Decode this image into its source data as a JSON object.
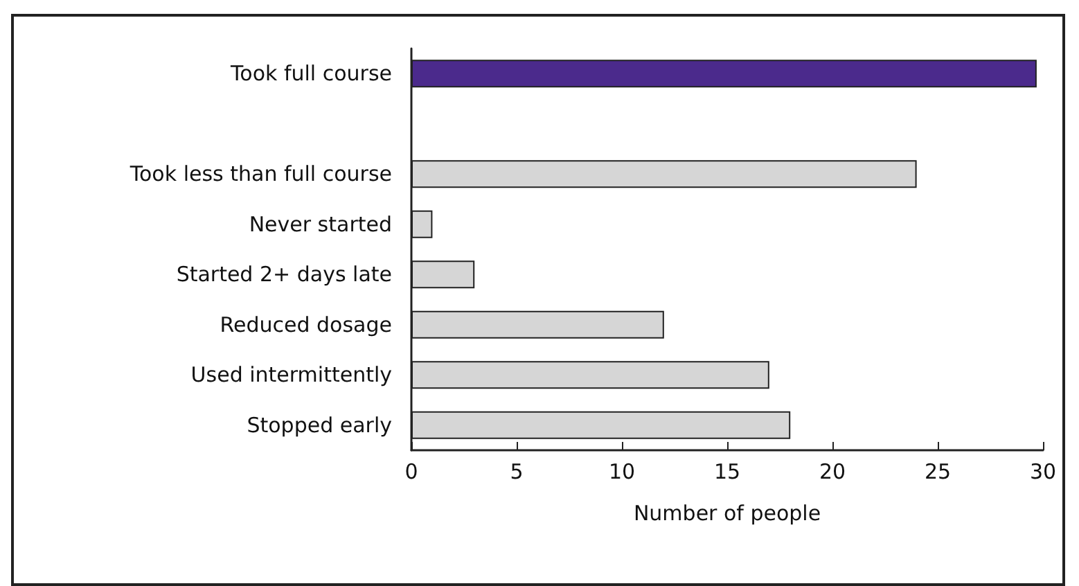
{
  "chart_data": {
    "type": "bar",
    "orientation": "horizontal",
    "xlabel": "Number of people",
    "categories": [
      "Took full course",
      null,
      "Took less than full course",
      "Never started",
      "Started 2+ days late",
      "Reduced dosage",
      "Used intermittently",
      "Stopped early"
    ],
    "values": [
      29.7,
      null,
      24,
      1,
      3,
      12,
      17,
      18
    ],
    "colors": [
      "#4b2a8c",
      null,
      "#d6d6d6",
      "#d6d6d6",
      "#d6d6d6",
      "#d6d6d6",
      "#d6d6d6",
      "#d6d6d6"
    ],
    "xlim": [
      0,
      30
    ],
    "xticks": [
      0,
      5,
      10,
      15,
      20,
      25,
      30
    ],
    "grid": false
  }
}
